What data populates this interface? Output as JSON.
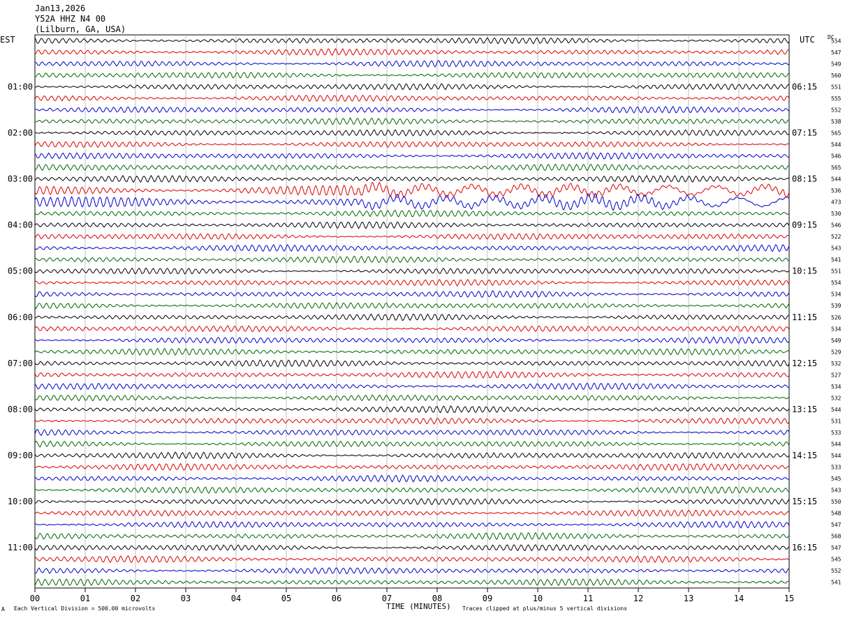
{
  "header": {
    "date": "Jan13,2026",
    "station": "Y52A HHZ N4 00",
    "location": "(Lilburn, GA, USA)"
  },
  "left_tz": "EST",
  "right_tz": "UTC",
  "dc_label": "DC",
  "footer": {
    "xlabel": "TIME (MINUTES)",
    "scale_note": "Each Vertical Division =  500.00 microvolts",
    "clip_note": "Traces clipped at plus/minus 5 vertical divisions",
    "corner_mark": "A"
  },
  "chart_data": {
    "type": "line",
    "title": "",
    "xlabel": "TIME (MINUTES)",
    "xlim": [
      0,
      15
    ],
    "x_ticks": [
      "00",
      "01",
      "02",
      "03",
      "04",
      "05",
      "06",
      "07",
      "08",
      "09",
      "10",
      "11",
      "12",
      "13",
      "14",
      "15"
    ],
    "trace_count": 48,
    "trace_colors": [
      "#000000",
      "#dd0000",
      "#0000cc",
      "#006600"
    ],
    "left_hour_labels": [
      "01:00",
      "02:00",
      "03:00",
      "04:00",
      "05:00",
      "06:00",
      "07:00",
      "08:00",
      "09:00",
      "10:00",
      "11:00"
    ],
    "right_hour_labels": [
      "06:15",
      "07:15",
      "08:15",
      "09:15",
      "10:15",
      "11:15",
      "12:15",
      "13:15",
      "14:15",
      "15:15",
      "16:15"
    ],
    "dc_offsets": [
      554,
      547,
      549,
      560,
      551,
      555,
      552,
      538,
      565,
      544,
      546,
      565,
      544,
      536,
      473,
      530,
      546,
      522,
      543,
      541,
      551,
      554,
      534,
      539,
      526,
      534,
      549,
      529,
      532,
      527,
      534,
      532,
      544,
      531,
      533,
      544,
      544,
      533,
      545,
      543,
      550,
      548,
      547,
      568,
      547,
      545,
      552,
      541
    ]
  }
}
